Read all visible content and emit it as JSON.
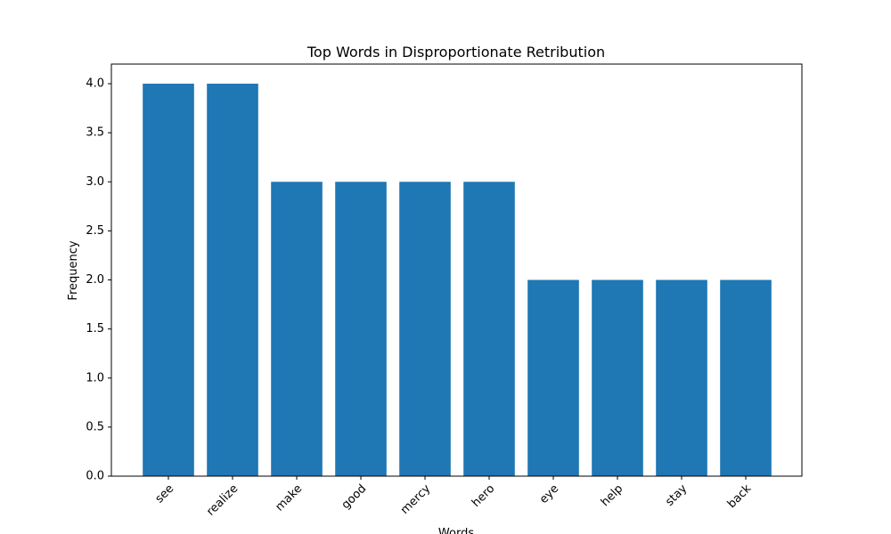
{
  "chart_data": {
    "type": "bar",
    "title": "Top Words in Disproportionate Retribution",
    "xlabel": "Words",
    "ylabel": "Frequency",
    "categories": [
      "see",
      "realize",
      "make",
      "good",
      "mercy",
      "hero",
      "eye",
      "help",
      "stay",
      "back"
    ],
    "values": [
      4,
      4,
      3,
      3,
      3,
      3,
      2,
      2,
      2,
      2
    ],
    "ylim": [
      0,
      4.2
    ],
    "yticks": [
      0.0,
      0.5,
      1.0,
      1.5,
      2.0,
      2.5,
      3.0,
      3.5,
      4.0
    ],
    "grid": false,
    "bar_color": "#1f77b4",
    "xtick_rotation_deg": 45
  }
}
